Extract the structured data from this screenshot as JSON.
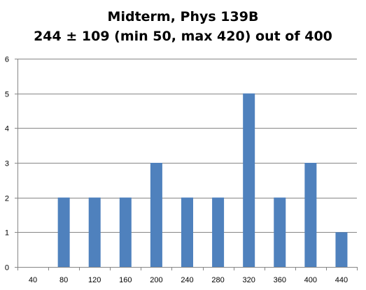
{
  "chart_data": {
    "type": "bar",
    "title_lines": [
      "Midterm, Phys 139B",
      "244 ± 109  (min 50, max 420) out of 400"
    ],
    "categories": [
      "40",
      "80",
      "120",
      "160",
      "200",
      "240",
      "280",
      "320",
      "360",
      "400",
      "440"
    ],
    "series": [
      {
        "values": [
          0,
          2,
          2,
          2,
          3,
          2,
          2,
          5,
          2,
          3,
          1
        ]
      }
    ],
    "y_ticks": [
      "0",
      "1",
      "2",
      "3",
      "4",
      "5",
      "6"
    ],
    "xlabel": "",
    "ylabel": "",
    "ylim": [
      0,
      6
    ],
    "grid": "horizontal",
    "legend": "none",
    "colors": {
      "bar": "#4F81BD",
      "grid": "#868686",
      "axis": "#868686"
    }
  }
}
